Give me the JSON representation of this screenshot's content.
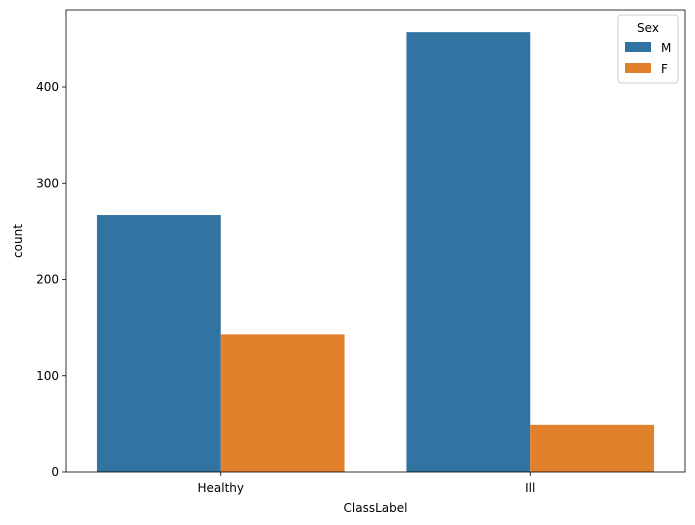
{
  "chart_data": {
    "type": "bar",
    "categories": [
      "Healthy",
      "Ill"
    ],
    "series": [
      {
        "name": "M",
        "values": [
          267,
          457
        ],
        "color": "#3274a1"
      },
      {
        "name": "F",
        "values": [
          143,
          49
        ],
        "color": "#e1812c"
      }
    ],
    "xlabel": "ClassLabel",
    "ylabel": "count",
    "ylim": [
      0,
      480
    ],
    "yticks": [
      0,
      100,
      200,
      300,
      400
    ],
    "grid": false,
    "legend": {
      "title": "Sex",
      "placement": "top-right"
    }
  }
}
